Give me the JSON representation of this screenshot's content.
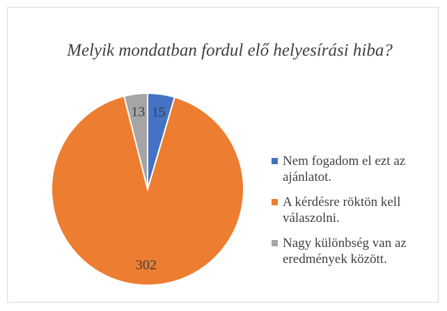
{
  "chart_data": {
    "type": "pie",
    "title": "Melyik mondatban fordul elő helyesírási hiba?",
    "categories": [
      "Nem fogadom el ezt az ajánlatot.",
      "A kérdésre röktön kell válaszolni.",
      "Nagy különbség van az eredmények között."
    ],
    "values": [
      15,
      302,
      13
    ],
    "colors": [
      "#4472c4",
      "#ed7d31",
      "#a5a5a5"
    ],
    "legend": "right"
  }
}
